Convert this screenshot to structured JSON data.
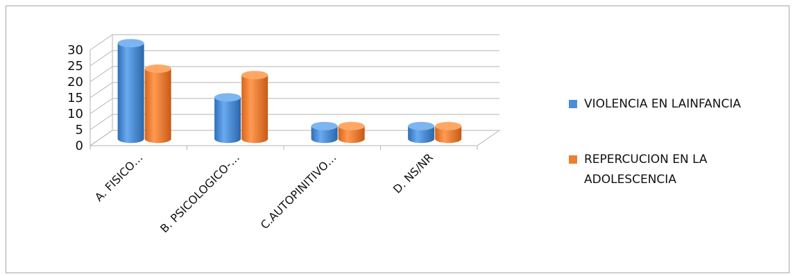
{
  "chart_data": {
    "type": "bar",
    "title": "",
    "xlabel": "",
    "ylabel": "",
    "categories": [
      "A. FISICO…",
      "B. PSICOLOGICO-…",
      "C.AUTOPINITIVO…",
      "D. NS/NR"
    ],
    "series": [
      {
        "name": "VIOLENCIA EN LAINFANCIA",
        "values": [
          30,
          13,
          4,
          4
        ],
        "color": "#4a8fd6"
      },
      {
        "name": "REPERCUCION EN LA ADOLESCENCIA",
        "values": [
          22,
          20,
          4,
          4
        ],
        "color": "#ed7d31"
      }
    ],
    "ylim": [
      0,
      30
    ],
    "yticks": [
      "0",
      "5",
      "10",
      "15",
      "20",
      "25",
      "30"
    ],
    "legend_lines": [
      [
        "VIOLENCIA EN LAINFANCIA"
      ],
      [
        "REPERCUCION EN LA",
        "ADOLESCENCIA"
      ]
    ],
    "legend_position": "right",
    "grid": true,
    "style": "3d-cylinder"
  }
}
